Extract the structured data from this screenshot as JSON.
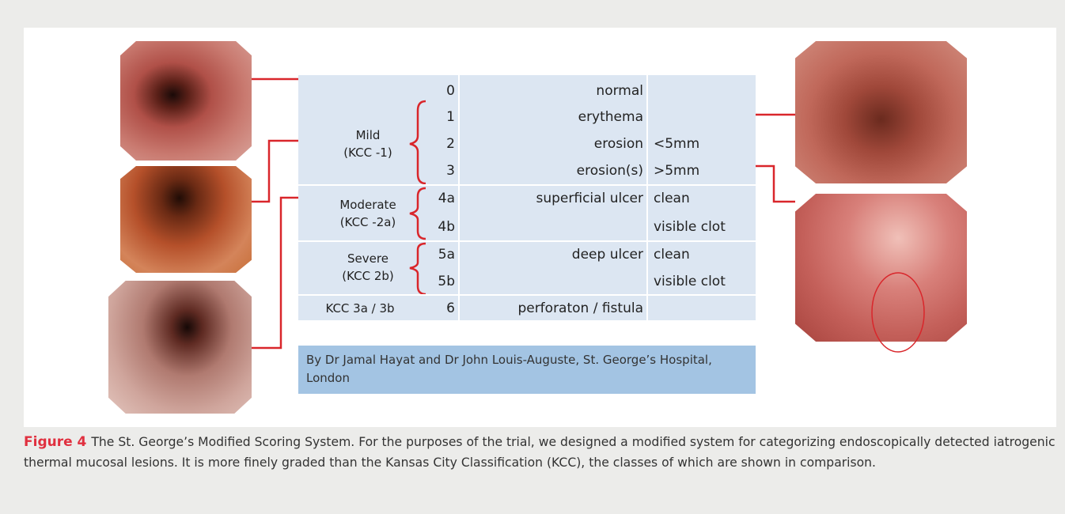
{
  "figure": {
    "table": {
      "groups": [
        {
          "lines": [
            "Mild",
            "(KCC -1)"
          ]
        },
        {
          "lines": [
            "Moderate",
            "(KCC -2a)"
          ]
        },
        {
          "lines": [
            "Severe",
            "(KCC 2b)"
          ]
        },
        {
          "lines": [
            "KCC 3a / 3b"
          ]
        }
      ],
      "rows": [
        {
          "grade": "0",
          "lesion": "normal"
        },
        {
          "grade": "1",
          "lesion": "erythema"
        },
        {
          "grade": "2",
          "lesion": "erosion",
          "detail": "<5mm"
        },
        {
          "grade": "3",
          "lesion": "erosion(s)",
          "detail": ">5mm"
        },
        {
          "grade": "4a",
          "lesion": "superficial ulcer",
          "detail": "clean"
        },
        {
          "grade": "4b",
          "detail": "visible clot"
        },
        {
          "grade": "5a",
          "lesion": "deep ulcer",
          "detail": "clean"
        },
        {
          "grade": "5b",
          "detail": "visible clot"
        },
        {
          "grade": "6",
          "lesion": "perforaton / fistula"
        }
      ]
    },
    "credit": "By Dr Jamal Hayat and Dr John Louis-Auguste, St. George’s Hospital, London",
    "caption": {
      "label": "Figure 4",
      "text": "The St. George’s Modified Scoring System. For the purposes of the trial, we designed a modified system for categorizing endoscopically detected iatrogenic thermal mucosal lesions. It is more finely graded than the Kansas City Classification (KCC), the classes of which are shown in comparison."
    }
  }
}
